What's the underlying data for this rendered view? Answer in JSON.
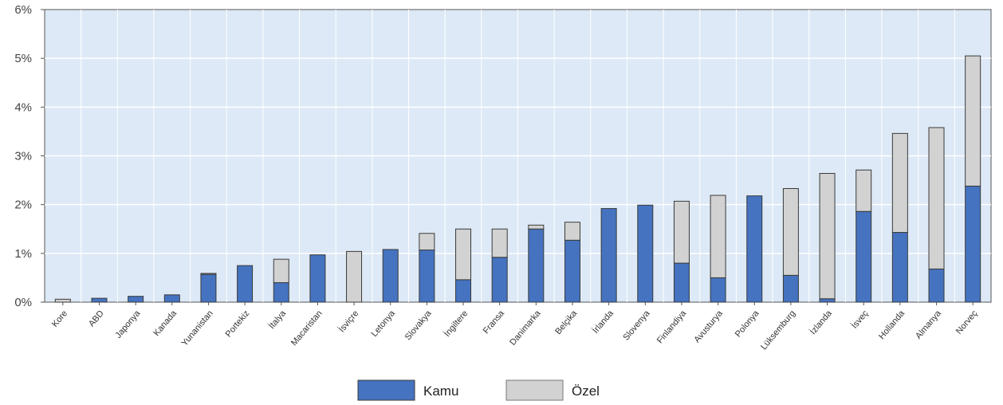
{
  "chart_data": {
    "type": "bar",
    "stacked": true,
    "y_tick_labels": [
      "0%",
      "1%",
      "2%",
      "3%",
      "4%",
      "5%",
      "6%"
    ],
    "ylim": [
      0,
      6
    ],
    "grid": true,
    "legend_placement": "bottom-center",
    "categories": [
      "Kore",
      "ABD",
      "Japonya",
      "Kanada",
      "Yunanistan",
      "Portekiz",
      "İtalya",
      "Macaristan",
      "İsviçre",
      "Letonya",
      "Slovakya",
      "İngiltere",
      "Fransa",
      "Danimarka",
      "Belçika",
      "İrlanda",
      "Slovenya",
      "Finlandiya",
      "Avusturya",
      "Polonya",
      "Lüksemburg",
      "İzlanda",
      "İsveç",
      "Hollanda",
      "Almanya",
      "Norveç"
    ],
    "series": [
      {
        "name": "Kamu",
        "color": "#4573c0",
        "values": [
          0.0,
          0.08,
          0.12,
          0.15,
          0.57,
          0.75,
          0.4,
          0.97,
          0.0,
          1.08,
          1.07,
          0.46,
          0.92,
          1.5,
          1.27,
          1.92,
          1.99,
          0.8,
          0.5,
          2.18,
          0.55,
          0.07,
          1.86,
          1.43,
          0.68,
          2.38
        ]
      },
      {
        "name": "Özel",
        "color": "#d2d2d2",
        "values": [
          0.06,
          0.0,
          0.0,
          0.0,
          0.02,
          0.0,
          0.48,
          0.0,
          1.04,
          0.0,
          0.34,
          1.04,
          0.58,
          0.08,
          0.37,
          0.0,
          0.0,
          1.27,
          1.69,
          0.0,
          1.78,
          2.57,
          0.85,
          2.03,
          2.9,
          2.67
        ]
      }
    ]
  },
  "colors": {
    "plot_background": "#dde9f6",
    "grid": "#ffffff",
    "axis": "#555555",
    "bar_outline": "#3a3a3a"
  }
}
